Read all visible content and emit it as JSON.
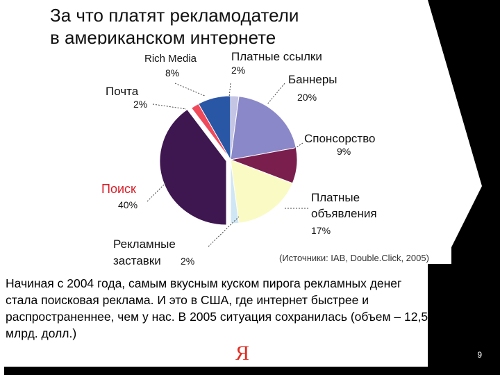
{
  "slide": {
    "title_line1": "За что платят рекламодатели",
    "title_line2": "в американском интернете",
    "source": "(Источники: IAB, Double.Click, 2005)",
    "body": "Начиная с 2004 года, самым вкусным куском пирога рекламных денег стала поисковая реклама. И это в США, где интернет быстрее и распространеннее, чем у нас. В 2005 ситуация сохранилась (объем – 12,5 млрд. долл.)",
    "page_number": "9",
    "logo_letter": "Я"
  },
  "colors": {
    "background": "#ffffff",
    "dark_panel": "#000000",
    "logo_red": "#e02b20"
  },
  "chart_data": {
    "type": "pie",
    "title": "",
    "slices": [
      {
        "name": "Платные ссылки",
        "value": 2,
        "label": "2%",
        "color": "#c4c4e4"
      },
      {
        "name": "Баннеры",
        "value": 20,
        "label": "20%",
        "color": "#8a88c8"
      },
      {
        "name": "Спонсорство",
        "value": 9,
        "label": "9%",
        "color": "#7a1e4e"
      },
      {
        "name": "Платные объявления",
        "value": 17,
        "label": "17%",
        "color": "#fafac4"
      },
      {
        "name": "Рекламные заставки",
        "value": 2,
        "label": "2%",
        "color": "#cfe6f4"
      },
      {
        "name": "Поиск",
        "value": 40,
        "label": "40%",
        "color": "#3e1650"
      },
      {
        "name": "Почта",
        "value": 2,
        "label": "2%",
        "color": "#f04a5a"
      },
      {
        "name": "Rich Media",
        "value": 8,
        "label": "8%",
        "color": "#2a56a6"
      }
    ]
  }
}
